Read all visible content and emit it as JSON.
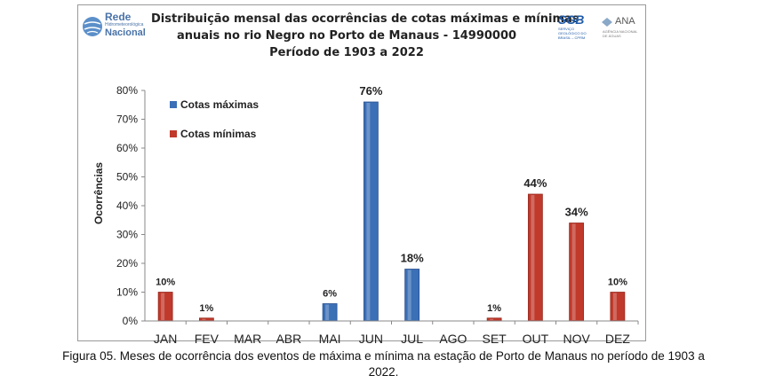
{
  "logos": {
    "rede": {
      "title": "Rede",
      "subtitle": "Hidrometeorológica",
      "name": "Nacional"
    },
    "sgb": {
      "text": "SGB",
      "subtitle": "SERVIÇO GEOLÓGICO DO BRASIL – CPRM"
    },
    "ana": {
      "text": "ANA",
      "subtitle": "AGÊNCIA NACIONAL DE ÁGUAS"
    }
  },
  "chart_data": {
    "type": "bar",
    "title_lines": [
      "Distribuição mensal das ocorrências de cotas máximas e mínimas",
      "anuais no rio Negro no Porto de Manaus - 14990000",
      "Período de 1903 a 2022"
    ],
    "ylabel": "Ocorrências",
    "xlabel": "",
    "ylim": [
      0,
      80
    ],
    "yticks": [
      "0%",
      "10%",
      "20%",
      "30%",
      "40%",
      "50%",
      "60%",
      "70%",
      "80%"
    ],
    "categories": [
      "JAN",
      "FEV",
      "MAR",
      "ABR",
      "MAI",
      "JUN",
      "JUL",
      "AGO",
      "SET",
      "OUT",
      "NOV",
      "DEZ"
    ],
    "series": [
      {
        "name": "Cotas máximas",
        "color": "#3b6fb6",
        "values": [
          null,
          null,
          null,
          null,
          6,
          76,
          18,
          null,
          null,
          null,
          null,
          null
        ]
      },
      {
        "name": "Cotas mínimas",
        "color": "#c0392b",
        "values": [
          10,
          1,
          null,
          null,
          null,
          null,
          null,
          null,
          1,
          44,
          34,
          10
        ]
      }
    ],
    "data_labels": [
      "10%",
      "1%",
      null,
      null,
      "6%",
      "76%",
      "18%",
      null,
      "1%",
      "44%",
      "34%",
      "10%"
    ],
    "legend_position": "top-left",
    "grid": false
  },
  "caption": {
    "line1": "Figura 05. Meses de ocorrência dos eventos de máxima e mínima na estação de Porto de Manaus no período de 1903 a",
    "line2": "2022."
  }
}
